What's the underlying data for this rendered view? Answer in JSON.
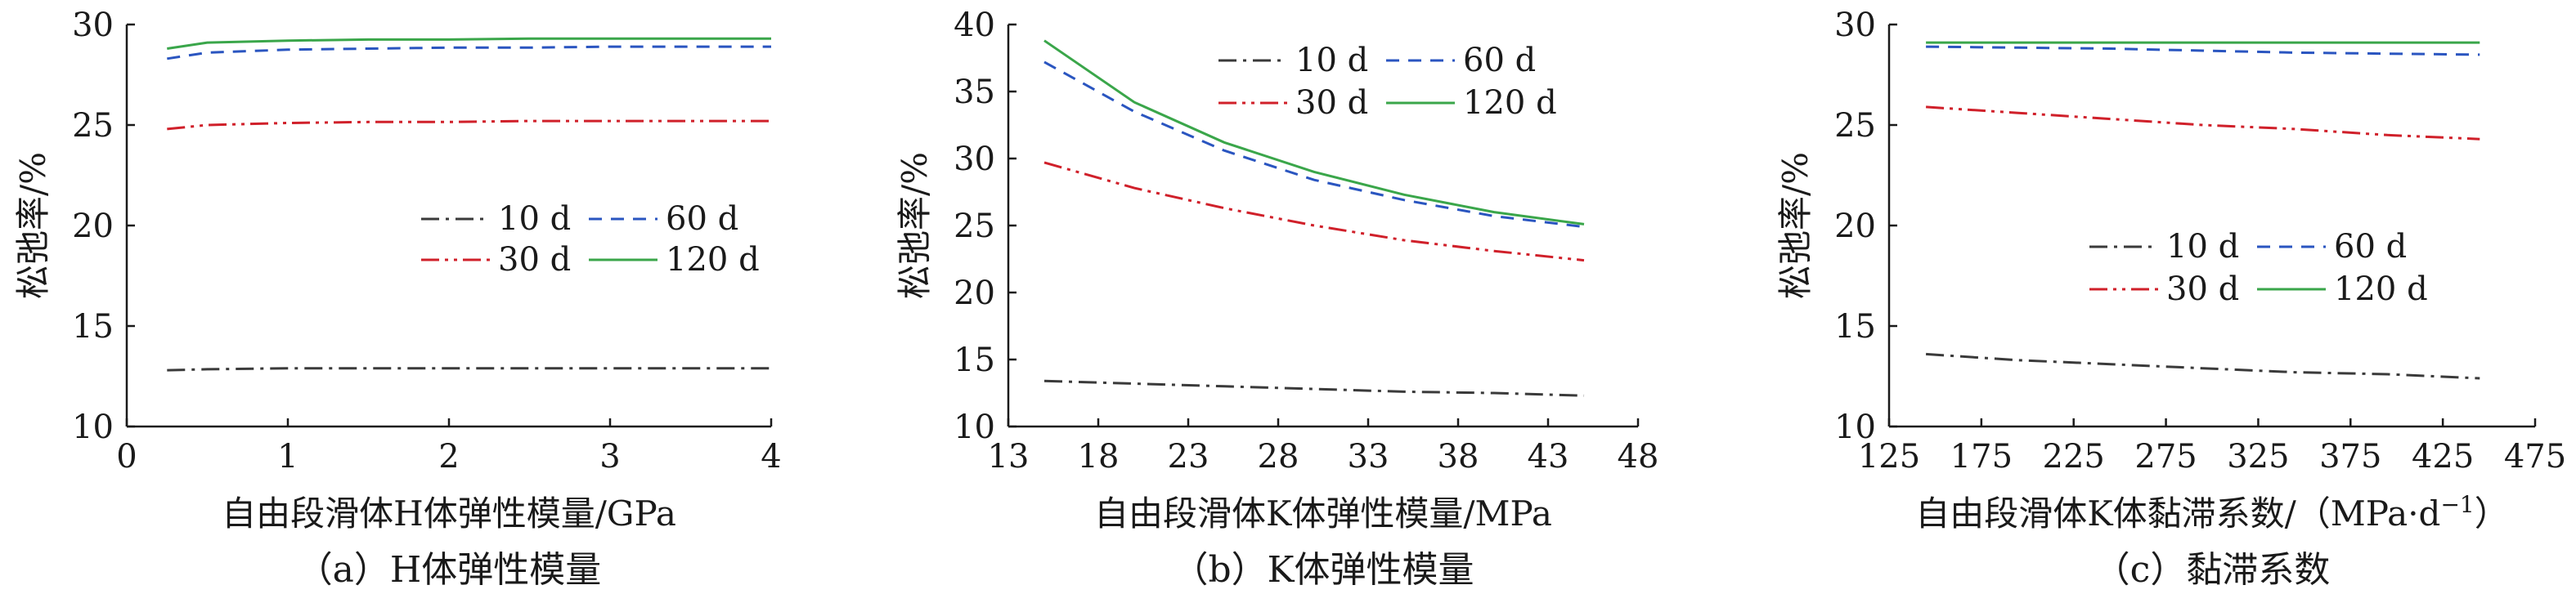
{
  "styles": {
    "10 d": {
      "color": "#3a3a3a",
      "dash": "22,8,4,8"
    },
    "30 d": {
      "color": "#d0202a",
      "dash": "22,7,4,7,4,7"
    },
    "60 d": {
      "color": "#2a55c0",
      "dash": "16,11"
    },
    "120 d": {
      "color": "#3aa64a",
      "dash": ""
    }
  },
  "chart_data": [
    {
      "type": "line",
      "xlabel": "自由段滑体H体弹性模量/GPa",
      "ylabel": "松弛率/%",
      "caption": "（a）H体弹性模量",
      "xlim": [
        0,
        4
      ],
      "ylim": [
        10,
        30
      ],
      "xticks": [
        "0",
        "1",
        "2",
        "3",
        "4"
      ],
      "yticks": [
        "10",
        "15",
        "20",
        "25",
        "30"
      ],
      "legend_labels": [
        "10 d",
        "60 d",
        "30 d",
        "120 d"
      ],
      "legend_placement": "center-right",
      "x": [
        0.25,
        0.5,
        1,
        1.5,
        2,
        2.5,
        3,
        3.5,
        4
      ],
      "series": [
        {
          "name": "10 d",
          "values": [
            12.8,
            12.85,
            12.9,
            12.9,
            12.9,
            12.9,
            12.9,
            12.9,
            12.9
          ]
        },
        {
          "name": "30 d",
          "values": [
            24.8,
            25.0,
            25.1,
            25.15,
            25.15,
            25.2,
            25.2,
            25.2,
            25.2
          ]
        },
        {
          "name": "60 d",
          "values": [
            28.3,
            28.6,
            28.75,
            28.8,
            28.85,
            28.85,
            28.9,
            28.9,
            28.9
          ]
        },
        {
          "name": "120 d",
          "values": [
            28.8,
            29.1,
            29.2,
            29.25,
            29.25,
            29.3,
            29.3,
            29.3,
            29.3
          ]
        }
      ]
    },
    {
      "type": "line",
      "xlabel": "自由段滑体K体弹性模量/MPa",
      "ylabel": "松弛率/%",
      "caption": "（b）K体弹性模量",
      "xlim": [
        13,
        48
      ],
      "ylim": [
        10,
        40
      ],
      "xticks": [
        "13",
        "18",
        "23",
        "28",
        "33",
        "38",
        "43",
        "48"
      ],
      "yticks": [
        "10",
        "15",
        "20",
        "25",
        "30",
        "35",
        "40"
      ],
      "legend_labels": [
        "10 d",
        "60 d",
        "30 d",
        "120 d"
      ],
      "legend_placement": "top-right",
      "x": [
        15,
        20,
        25,
        30,
        35,
        40,
        45
      ],
      "series": [
        {
          "name": "10 d",
          "values": [
            13.4,
            13.2,
            13.0,
            12.8,
            12.6,
            12.5,
            12.3
          ]
        },
        {
          "name": "30 d",
          "values": [
            29.7,
            27.8,
            26.3,
            25.0,
            23.9,
            23.1,
            22.4
          ]
        },
        {
          "name": "60 d",
          "values": [
            37.2,
            33.5,
            30.6,
            28.4,
            26.9,
            25.7,
            24.9
          ]
        },
        {
          "name": "120 d",
          "values": [
            38.8,
            34.2,
            31.2,
            29.0,
            27.3,
            26.0,
            25.1
          ]
        }
      ]
    },
    {
      "type": "line",
      "xlabel": "自由段滑体K体黏滞系数/（MPa·d",
      "xlabel_sup": "−1",
      "xlabel_end": "）",
      "ylabel": "松弛率/%",
      "caption": "（c）黏滞系数",
      "xlim": [
        125,
        475
      ],
      "ylim": [
        10,
        30
      ],
      "xticks": [
        "125",
        "175",
        "225",
        "275",
        "325",
        "375",
        "425",
        "475"
      ],
      "yticks": [
        "10",
        "15",
        "20",
        "25",
        "30"
      ],
      "legend_labels": [
        "10 d",
        "60 d",
        "30 d",
        "120 d"
      ],
      "legend_placement": "center-right",
      "x": [
        145,
        195,
        245,
        295,
        345,
        395,
        445
      ],
      "series": [
        {
          "name": "10 d",
          "values": [
            13.6,
            13.3,
            13.1,
            12.9,
            12.7,
            12.6,
            12.4
          ]
        },
        {
          "name": "30 d",
          "values": [
            25.9,
            25.6,
            25.3,
            25.0,
            24.8,
            24.5,
            24.3
          ]
        },
        {
          "name": "60 d",
          "values": [
            28.9,
            28.85,
            28.8,
            28.7,
            28.6,
            28.55,
            28.5
          ]
        },
        {
          "name": "120 d",
          "values": [
            29.1,
            29.1,
            29.1,
            29.1,
            29.1,
            29.1,
            29.1
          ]
        }
      ]
    }
  ]
}
